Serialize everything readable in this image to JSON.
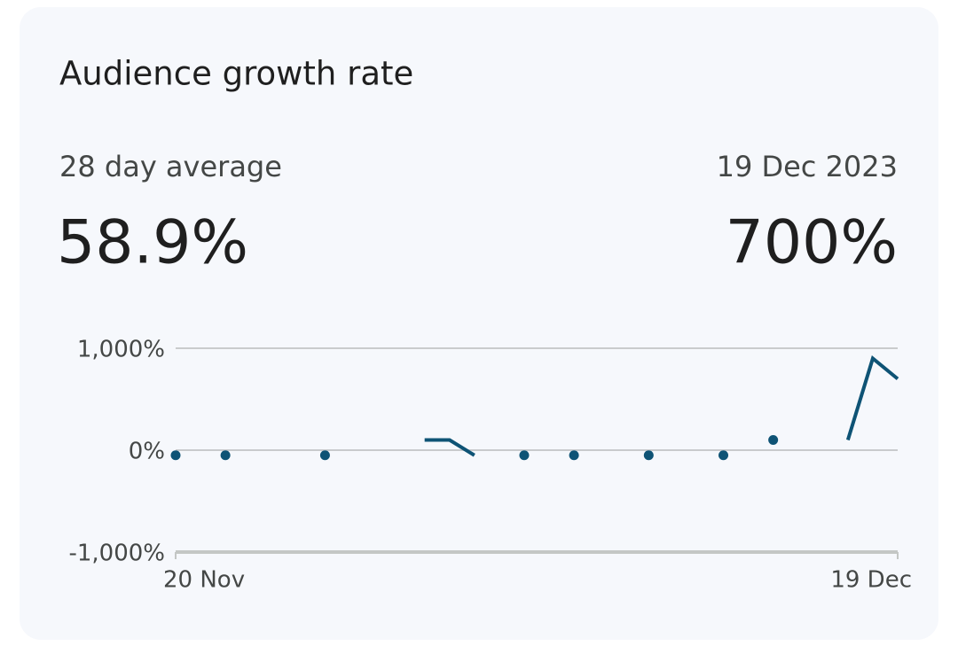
{
  "card": {
    "title": "Audience growth rate",
    "left_label": "28 day average",
    "left_value": "58.9%",
    "right_label": "19 Dec 2023",
    "right_value": "700%"
  },
  "chart_data": {
    "type": "line",
    "categories": [
      "20 Nov",
      null,
      null,
      null,
      null,
      null,
      null,
      null,
      null,
      null,
      null,
      null,
      null,
      null,
      null,
      null,
      null,
      null,
      null,
      null,
      null,
      null,
      null,
      null,
      null,
      null,
      null,
      null,
      null,
      "19 Dec"
    ],
    "series": [
      {
        "name": "Audience growth rate",
        "color": "#0e5375",
        "values": [
          -50,
          null,
          -50,
          null,
          null,
          null,
          -50,
          null,
          null,
          null,
          100,
          100,
          -50,
          null,
          -50,
          null,
          -50,
          null,
          null,
          -50,
          null,
          null,
          -50,
          null,
          100,
          null,
          null,
          100,
          900,
          700
        ]
      }
    ],
    "ylim": [
      -1000,
      1000
    ],
    "yticks": [
      {
        "value": -1000,
        "label": "-1,000%"
      },
      {
        "value": 0,
        "label": "0%"
      },
      {
        "value": 1000,
        "label": "1,000%"
      }
    ],
    "grid": true
  }
}
